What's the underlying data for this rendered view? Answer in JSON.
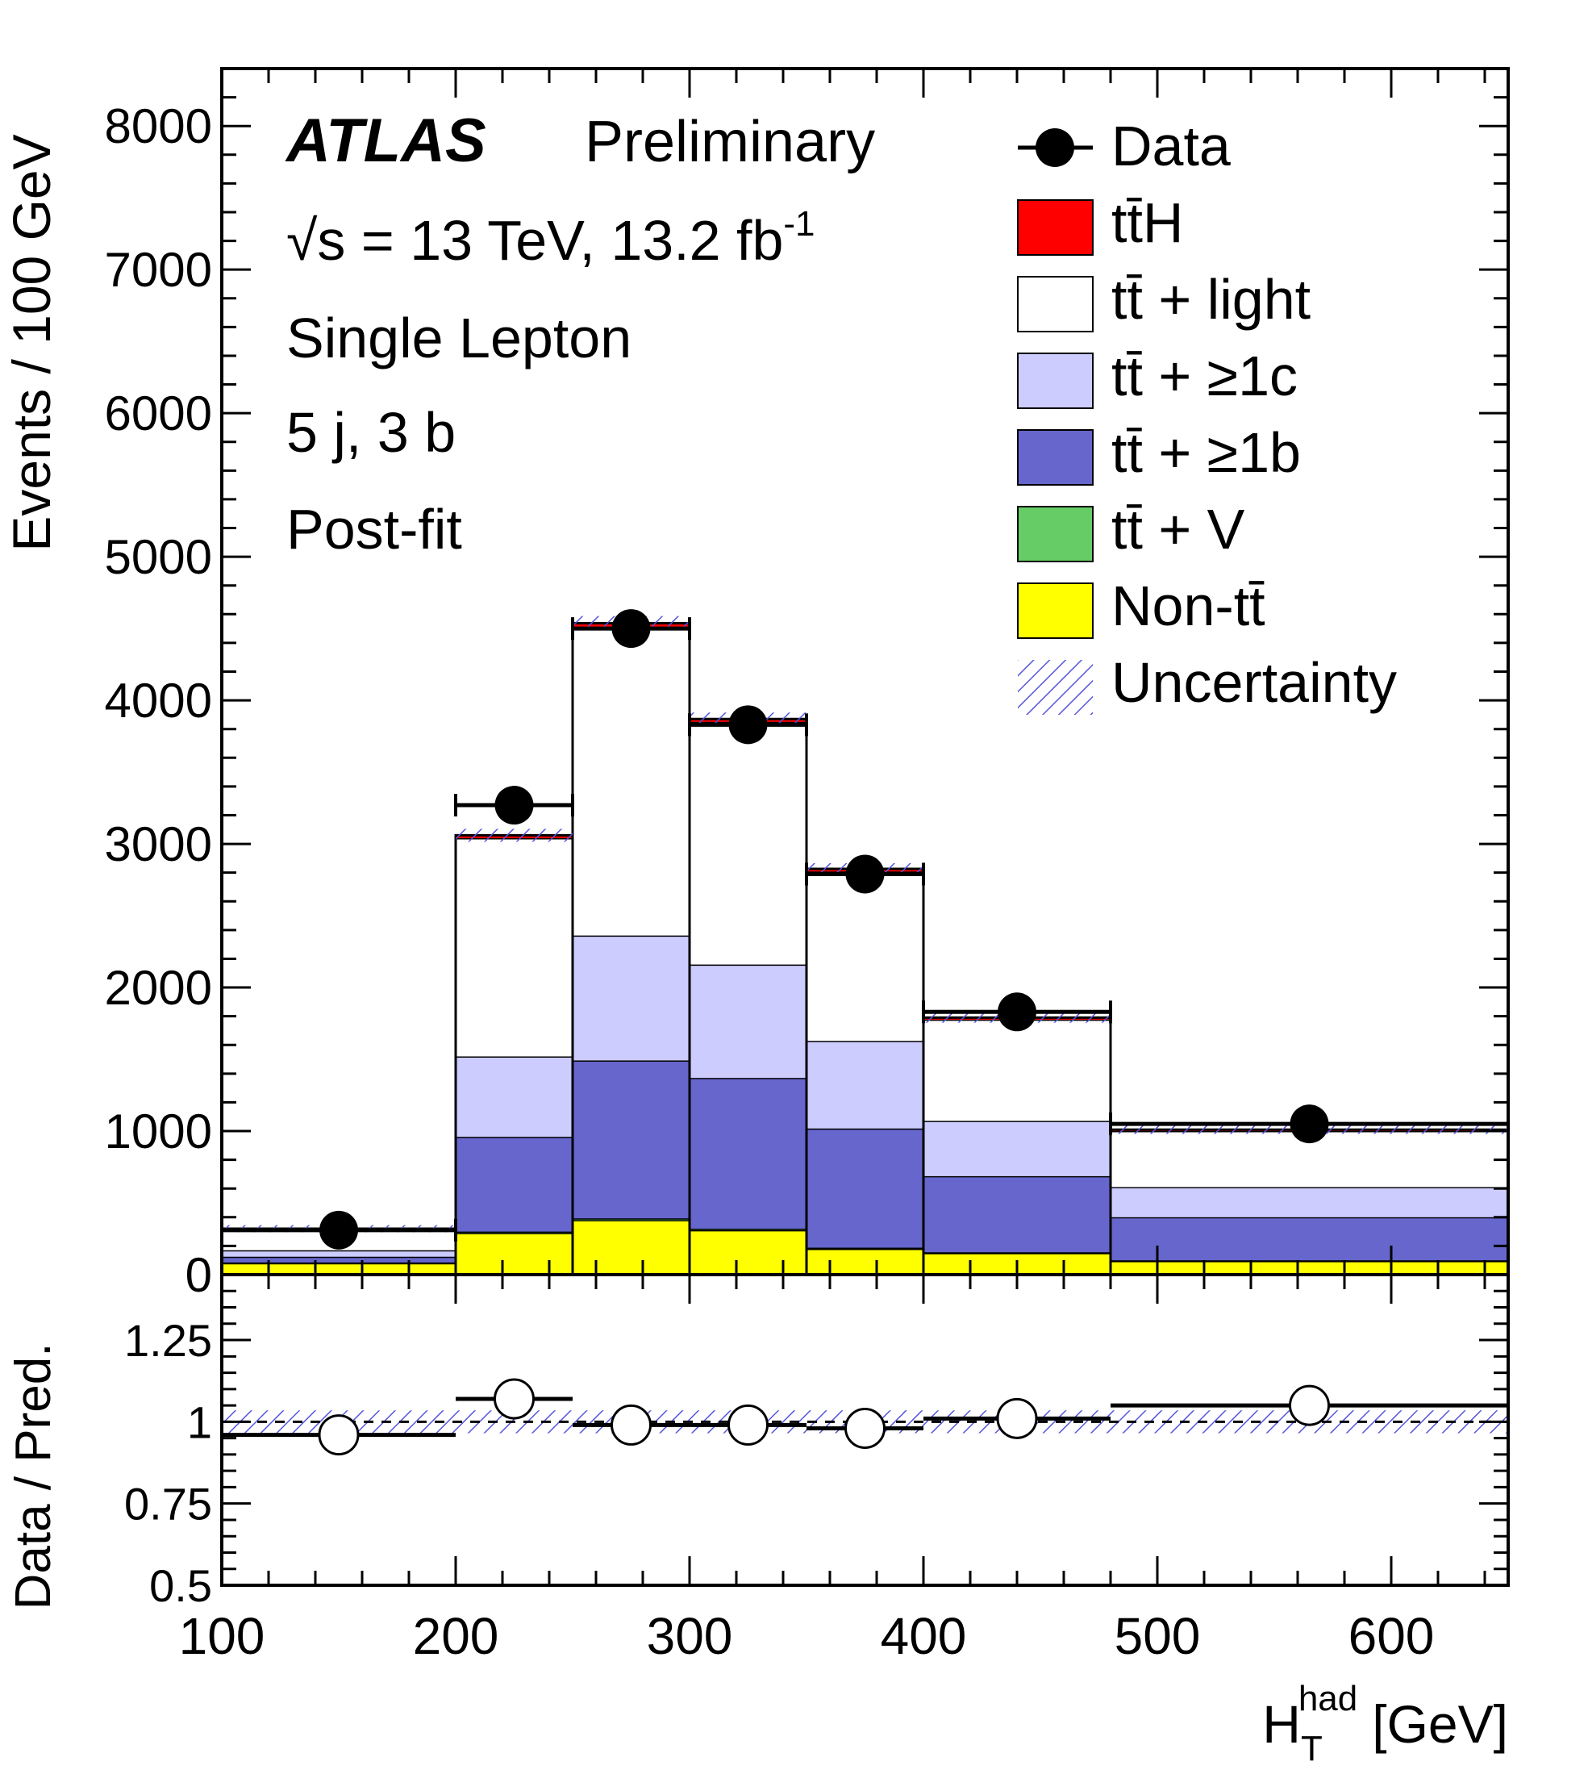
{
  "chart_data": {
    "type": "bar",
    "stacked": true,
    "title": "",
    "xlabel_main": "H",
    "xlabel_sup": "had",
    "xlabel_sub": "T",
    "xlabel_unit": "[GeV]",
    "ylabel": "Events / 100 GeV",
    "ratio_ylabel": "Data / Pred.",
    "xlim": [
      100,
      650
    ],
    "ylim": [
      0,
      8400
    ],
    "ratio_ylim": [
      0.5,
      1.45
    ],
    "xticks": [
      "100",
      "200",
      "300",
      "400",
      "500",
      "600"
    ],
    "yticks": [
      "0",
      "1000",
      "2000",
      "3000",
      "4000",
      "5000",
      "6000",
      "7000",
      "8000"
    ],
    "ratio_yticks": [
      "0.5",
      "0.75",
      "1",
      "1.25"
    ],
    "grid": false,
    "legend_position": "top-right",
    "annotations": {
      "logo": "ATLAS",
      "status": "Preliminary",
      "energy": "√s = 13 TeV, 13.2 fb",
      "energy_sup": "-1",
      "channel": "Single Lepton",
      "region": "5 j, 3 b",
      "fit": "Post-fit"
    },
    "bins": [
      [
        100,
        200
      ],
      [
        200,
        250
      ],
      [
        250,
        300
      ],
      [
        300,
        350
      ],
      [
        350,
        400
      ],
      [
        400,
        480
      ],
      [
        480,
        650
      ]
    ],
    "series": [
      {
        "name": "Non-tt̄",
        "color": "#ffff00",
        "values": [
          80,
          290,
          380,
          310,
          180,
          150,
          95
        ]
      },
      {
        "name": "tt̄ + V",
        "color": "#66cc66",
        "values": [
          5,
          10,
          12,
          10,
          8,
          6,
          5
        ]
      },
      {
        "name": "tt̄ + ≥1b",
        "color": "#6666cc",
        "values": [
          40,
          660,
          1100,
          1050,
          830,
          530,
          300
        ]
      },
      {
        "name": "tt̄ + ≥1c",
        "color": "#ccccff",
        "values": [
          45,
          560,
          870,
          790,
          610,
          385,
          210
        ]
      },
      {
        "name": "tt̄ + light",
        "color": "#ffffff",
        "values": [
          145,
          1520,
          2150,
          1690,
          1180,
          705,
          390
        ]
      },
      {
        "name": "tt̄H",
        "color": "#ff0000",
        "values": [
          5,
          20,
          25,
          20,
          18,
          14,
          10
        ]
      }
    ],
    "uncertainty": {
      "name": "Uncertainty",
      "color": "#5555dd",
      "values": [
        25,
        45,
        50,
        45,
        40,
        35,
        30
      ]
    },
    "data": {
      "name": "Data",
      "x": [
        150,
        225,
        275,
        325,
        375,
        440,
        565
      ],
      "y": [
        310,
        3270,
        4500,
        3830,
        2790,
        1830,
        1050
      ]
    },
    "ratio": {
      "x": [
        150,
        225,
        275,
        325,
        375,
        440,
        565
      ],
      "y": [
        0.96,
        1.07,
        0.99,
        0.99,
        0.98,
        1.01,
        1.05
      ],
      "band": 0.035
    }
  }
}
